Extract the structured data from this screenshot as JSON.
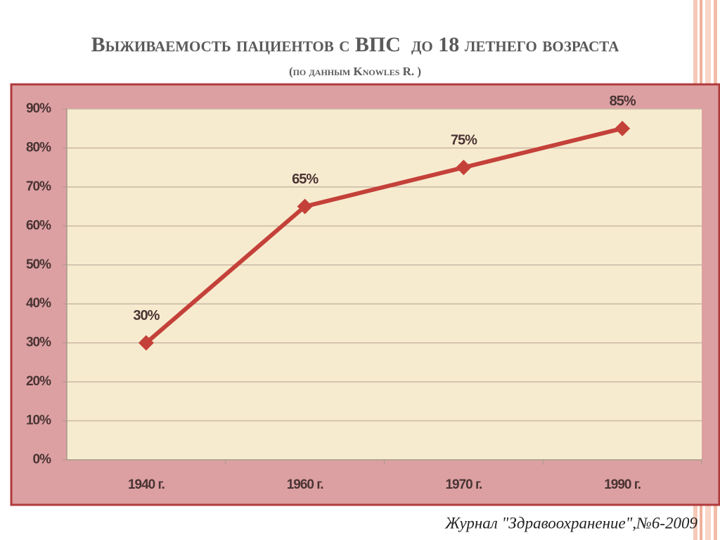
{
  "chart_data": {
    "type": "line",
    "title": "Выживаемость пациентов с ВПС  до 18 летнего возраста",
    "subtitle": "(по данным Knowles R. )",
    "annotation": "Журнал \"Здравоохранение\",№6-2009",
    "categories": [
      "1940 г.",
      "1960 г.",
      "1970 г.",
      "1990 г."
    ],
    "values": [
      30,
      65,
      75,
      85
    ],
    "value_labels": [
      "30%",
      "65%",
      "75%",
      "85%"
    ],
    "color": "#c4413a",
    "ylim": [
      0,
      90
    ],
    "yticks": [
      {
        "value": 0,
        "label": "0%"
      },
      {
        "value": 10,
        "label": "10%"
      },
      {
        "value": 20,
        "label": "20%"
      },
      {
        "value": 30,
        "label": "30%"
      },
      {
        "value": 40,
        "label": "40%"
      },
      {
        "value": 50,
        "label": "50%"
      },
      {
        "value": 60,
        "label": "60%"
      },
      {
        "value": 70,
        "label": "70%"
      },
      {
        "value": 80,
        "label": "80%"
      },
      {
        "value": 90,
        "label": "90%"
      }
    ],
    "grid": true
  }
}
